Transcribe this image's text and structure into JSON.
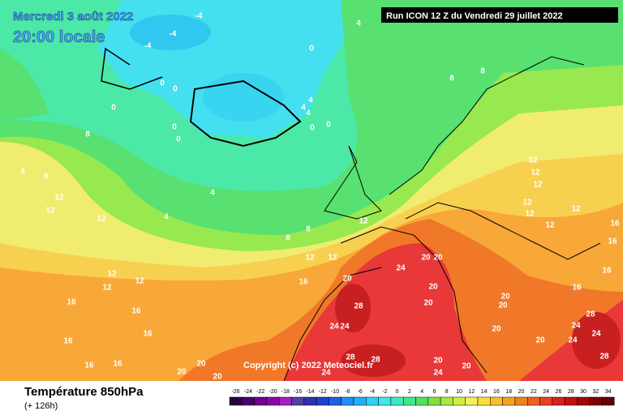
{
  "header": {
    "date": "Mercredi 3 août 2022",
    "time": "20:00 locale",
    "run": "Run ICON 12 Z du Vendredi 29 juillet 2022"
  },
  "copyright": "Copyright (c) 2022 Meteociel.fr",
  "footer": {
    "title": "Température 850hPa",
    "subtitle": "(+ 126h)"
  },
  "legend": {
    "ticks": [
      -26,
      -24,
      -22,
      -20,
      -18,
      -16,
      -14,
      -12,
      -10,
      -8,
      -6,
      -4,
      -2,
      0,
      2,
      4,
      6,
      8,
      10,
      12,
      14,
      16,
      18,
      20,
      22,
      24,
      26,
      28,
      30,
      32,
      34
    ],
    "colors": [
      "#2a0040",
      "#4a0070",
      "#700090",
      "#9000b0",
      "#a020c0",
      "#5040a0",
      "#3030b0",
      "#2040d0",
      "#2060e0",
      "#2090f0",
      "#20b0f8",
      "#30d0f8",
      "#40e8e8",
      "#40e8c0",
      "#40e890",
      "#50e060",
      "#80e040",
      "#a8e840",
      "#d0f040",
      "#f0f060",
      "#f8e040",
      "#f8c030",
      "#f8a020",
      "#f08020",
      "#f06020",
      "#e84020",
      "#d82020",
      "#c01010",
      "#a00808",
      "#800000",
      "#600000"
    ]
  },
  "contour_labels": [
    -4,
    -4,
    -4,
    4,
    0,
    0,
    0,
    0,
    0,
    0,
    0,
    0,
    4,
    4,
    4,
    4,
    4,
    4,
    8,
    8,
    12,
    12,
    12,
    8,
    8,
    8,
    8,
    12,
    12,
    12,
    12,
    12,
    12,
    16,
    16,
    16,
    16,
    16,
    16,
    16,
    20,
    20,
    20,
    20,
    20,
    20,
    20,
    20,
    24,
    28,
    24,
    24,
    28,
    28,
    24,
    20,
    20,
    24,
    20,
    20,
    24,
    28,
    12,
    12,
    12,
    12,
    12,
    12,
    12,
    16,
    16,
    16,
    16,
    20,
    20,
    28,
    24,
    24
  ]
}
